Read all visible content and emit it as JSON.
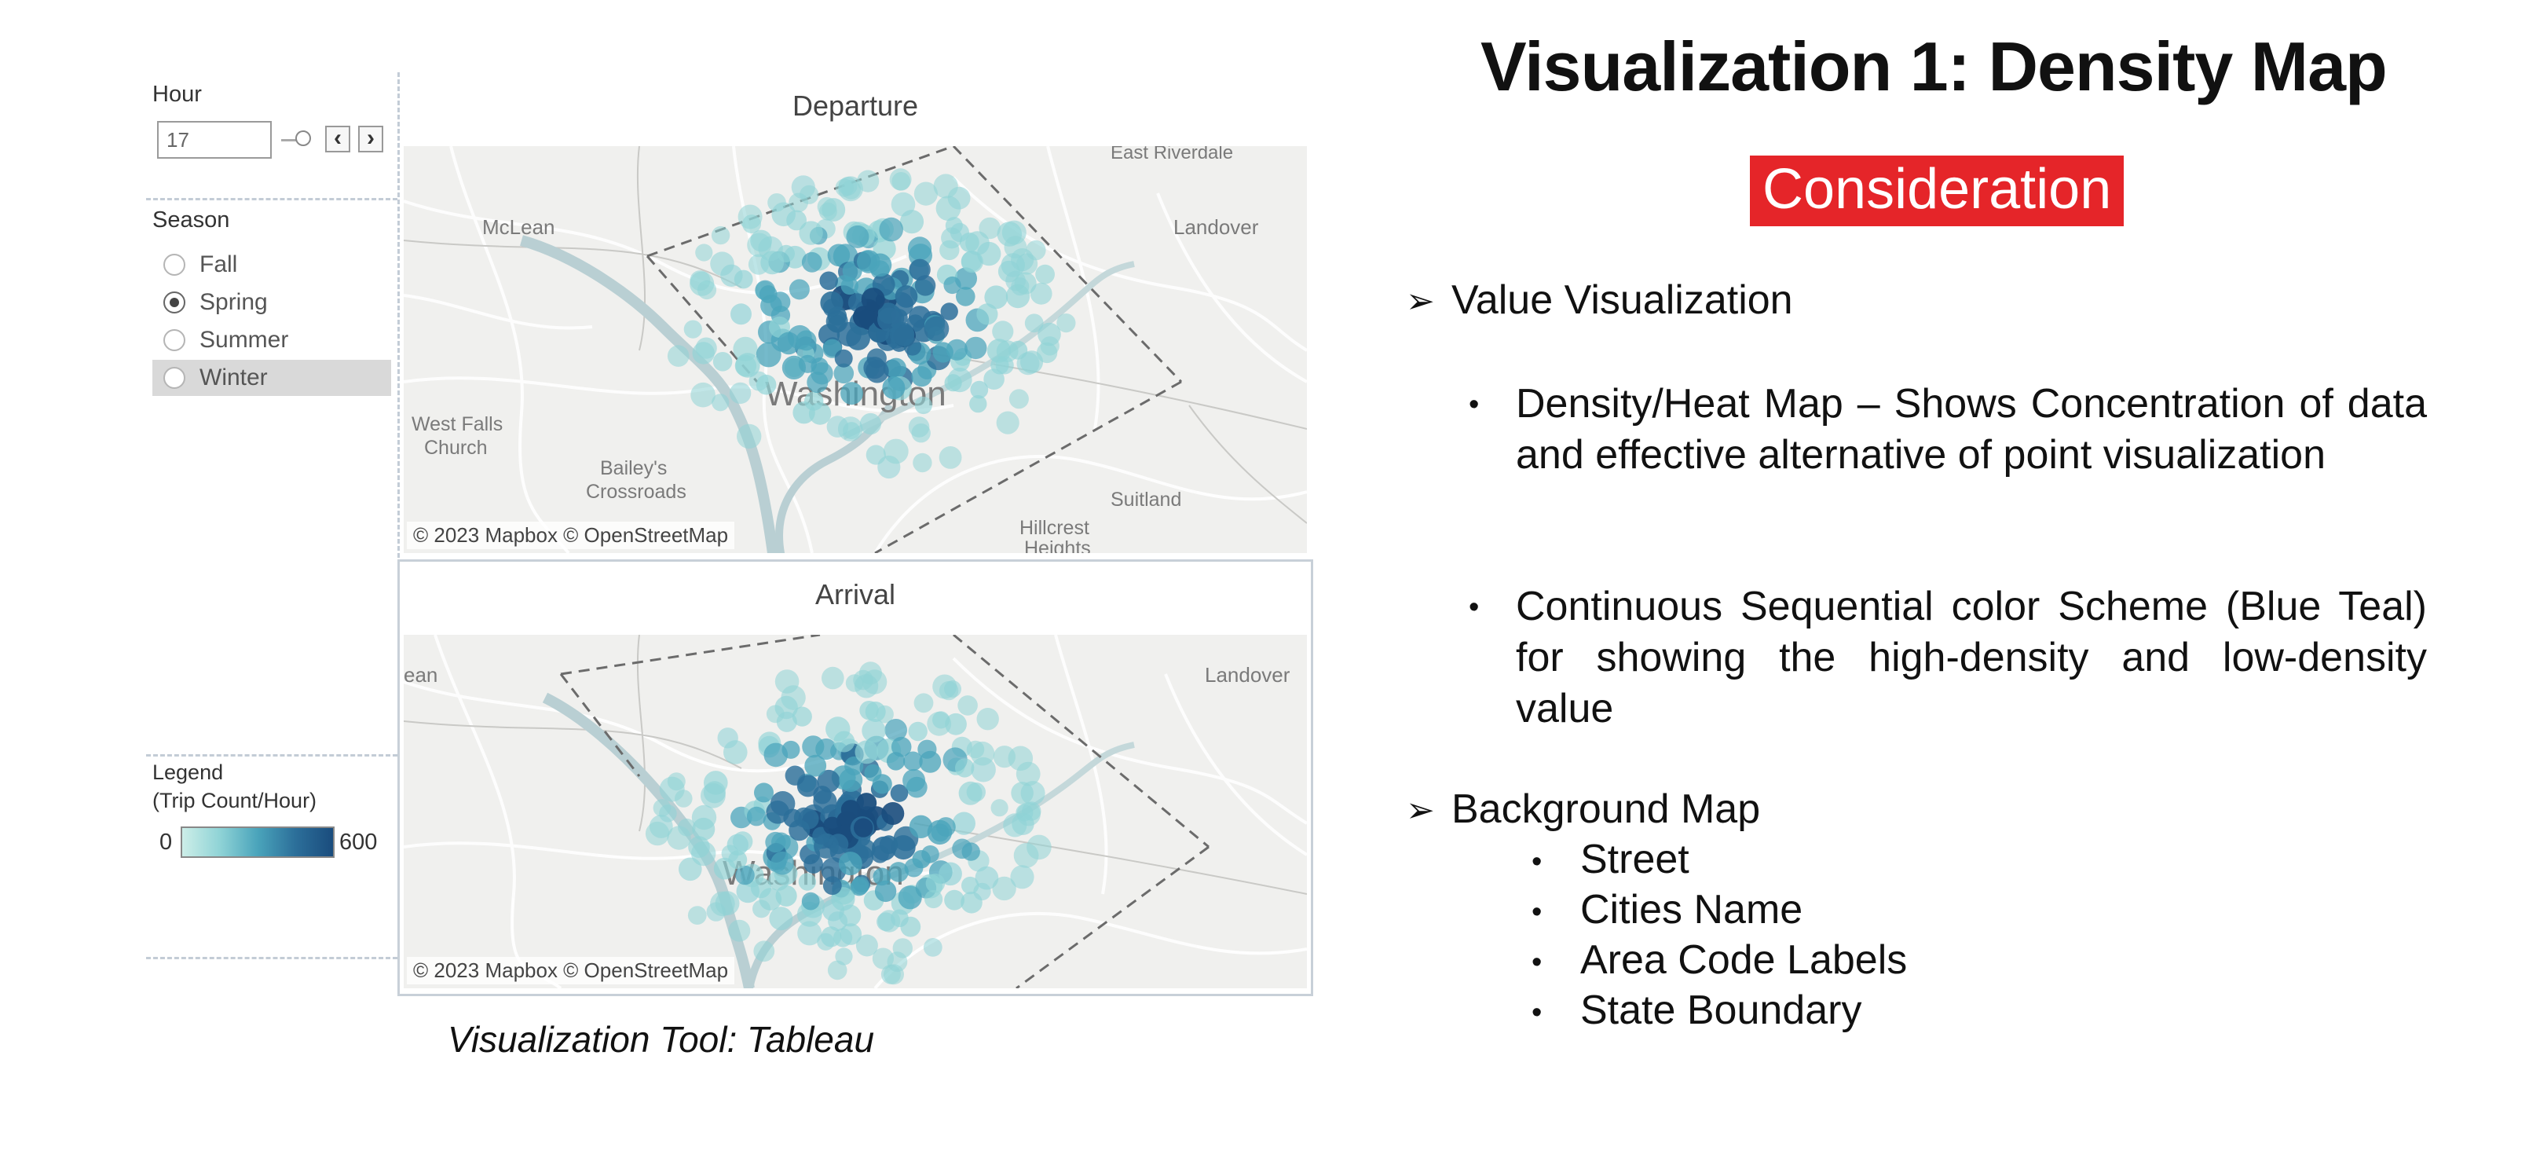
{
  "dashboard": {
    "hour": {
      "label": "Hour",
      "value": "17"
    },
    "season": {
      "label": "Season",
      "options": [
        {
          "label": "Fall",
          "selected": false
        },
        {
          "label": "Spring",
          "selected": true
        },
        {
          "label": "Summer",
          "selected": false
        },
        {
          "label": "Winter",
          "selected": false
        }
      ]
    },
    "legend": {
      "title_line1": "Legend",
      "title_line2": "(Trip Count/Hour)",
      "min": "0",
      "max": "600",
      "colors": [
        "#cdeee8",
        "#8fd3d6",
        "#4aa4bb",
        "#2c6f9a",
        "#1a4c7d"
      ]
    },
    "departure_map": {
      "title": "Departure",
      "attribution": "© 2023 Mapbox © OpenStreetMap",
      "places": {
        "east_riverdale": "East Riverdale",
        "mclean": "McLean",
        "landover": "Landover",
        "washington": "Washington",
        "west_falls": "West Falls",
        "church": "Church",
        "baileys": "Bailey's",
        "crossroads": "Crossroads",
        "suitland": "Suitland",
        "hillcrest": "Hillcrest",
        "heights": "Heights"
      }
    },
    "arrival_map": {
      "title": "Arrival",
      "attribution": "© 2023 Mapbox © OpenStreetMap",
      "places": {
        "ean": "ean",
        "landover": "Landover",
        "washington": "Washington"
      }
    },
    "tool_caption": "Visualization Tool: Tableau"
  },
  "slide": {
    "title": "Visualization 1: Density Map",
    "badge": "Consideration",
    "section1": {
      "heading": "Value Visualization",
      "bullets": [
        "Density/Heat Map – Shows Concentration of data and effective alternative of point visualization",
        "Continuous Sequential color Scheme (Blue Teal) for showing the high-density and low-density value"
      ]
    },
    "section2": {
      "heading": "Background Map",
      "items": [
        "Street",
        "Cities Name",
        "Area Code Labels",
        "State Boundary"
      ]
    }
  },
  "colors": {
    "badge_bg": "#e52529",
    "density_low": "#8fd3d6",
    "density_high": "#1a4c7d",
    "river": "#b9cfd3",
    "boundary": "#6b6b6b"
  }
}
